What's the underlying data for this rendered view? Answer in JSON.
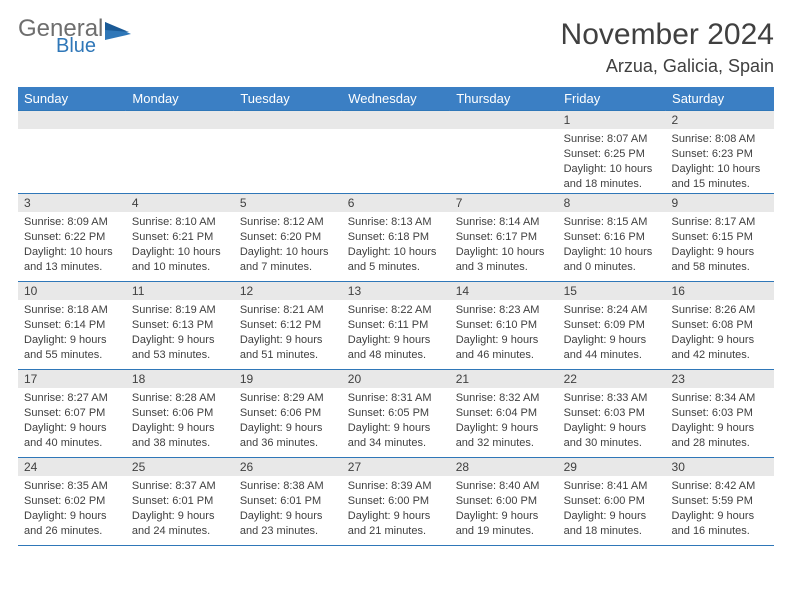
{
  "brand": {
    "line1": "General",
    "line2": "Blue",
    "line1_color": "#6e6e6e",
    "line2_color": "#2f77b8"
  },
  "title": "November 2024",
  "location": "Arzua, Galicia, Spain",
  "colors": {
    "header_bg": "#3b7fc4",
    "header_fg": "#ffffff",
    "daynum_bg": "#e8e8e8",
    "border": "#2f77b8",
    "text": "#404040",
    "page_bg": "#ffffff"
  },
  "typography": {
    "title_fontsize": 30,
    "location_fontsize": 18,
    "dayheader_fontsize": 13,
    "daynum_fontsize": 12,
    "body_fontsize": 11
  },
  "day_headers": [
    "Sunday",
    "Monday",
    "Tuesday",
    "Wednesday",
    "Thursday",
    "Friday",
    "Saturday"
  ],
  "weeks": [
    [
      null,
      null,
      null,
      null,
      null,
      {
        "n": "1",
        "sr": "Sunrise: 8:07 AM",
        "ss": "Sunset: 6:25 PM",
        "dl": "Daylight: 10 hours and 18 minutes."
      },
      {
        "n": "2",
        "sr": "Sunrise: 8:08 AM",
        "ss": "Sunset: 6:23 PM",
        "dl": "Daylight: 10 hours and 15 minutes."
      }
    ],
    [
      {
        "n": "3",
        "sr": "Sunrise: 8:09 AM",
        "ss": "Sunset: 6:22 PM",
        "dl": "Daylight: 10 hours and 13 minutes."
      },
      {
        "n": "4",
        "sr": "Sunrise: 8:10 AM",
        "ss": "Sunset: 6:21 PM",
        "dl": "Daylight: 10 hours and 10 minutes."
      },
      {
        "n": "5",
        "sr": "Sunrise: 8:12 AM",
        "ss": "Sunset: 6:20 PM",
        "dl": "Daylight: 10 hours and 7 minutes."
      },
      {
        "n": "6",
        "sr": "Sunrise: 8:13 AM",
        "ss": "Sunset: 6:18 PM",
        "dl": "Daylight: 10 hours and 5 minutes."
      },
      {
        "n": "7",
        "sr": "Sunrise: 8:14 AM",
        "ss": "Sunset: 6:17 PM",
        "dl": "Daylight: 10 hours and 3 minutes."
      },
      {
        "n": "8",
        "sr": "Sunrise: 8:15 AM",
        "ss": "Sunset: 6:16 PM",
        "dl": "Daylight: 10 hours and 0 minutes."
      },
      {
        "n": "9",
        "sr": "Sunrise: 8:17 AM",
        "ss": "Sunset: 6:15 PM",
        "dl": "Daylight: 9 hours and 58 minutes."
      }
    ],
    [
      {
        "n": "10",
        "sr": "Sunrise: 8:18 AM",
        "ss": "Sunset: 6:14 PM",
        "dl": "Daylight: 9 hours and 55 minutes."
      },
      {
        "n": "11",
        "sr": "Sunrise: 8:19 AM",
        "ss": "Sunset: 6:13 PM",
        "dl": "Daylight: 9 hours and 53 minutes."
      },
      {
        "n": "12",
        "sr": "Sunrise: 8:21 AM",
        "ss": "Sunset: 6:12 PM",
        "dl": "Daylight: 9 hours and 51 minutes."
      },
      {
        "n": "13",
        "sr": "Sunrise: 8:22 AM",
        "ss": "Sunset: 6:11 PM",
        "dl": "Daylight: 9 hours and 48 minutes."
      },
      {
        "n": "14",
        "sr": "Sunrise: 8:23 AM",
        "ss": "Sunset: 6:10 PM",
        "dl": "Daylight: 9 hours and 46 minutes."
      },
      {
        "n": "15",
        "sr": "Sunrise: 8:24 AM",
        "ss": "Sunset: 6:09 PM",
        "dl": "Daylight: 9 hours and 44 minutes."
      },
      {
        "n": "16",
        "sr": "Sunrise: 8:26 AM",
        "ss": "Sunset: 6:08 PM",
        "dl": "Daylight: 9 hours and 42 minutes."
      }
    ],
    [
      {
        "n": "17",
        "sr": "Sunrise: 8:27 AM",
        "ss": "Sunset: 6:07 PM",
        "dl": "Daylight: 9 hours and 40 minutes."
      },
      {
        "n": "18",
        "sr": "Sunrise: 8:28 AM",
        "ss": "Sunset: 6:06 PM",
        "dl": "Daylight: 9 hours and 38 minutes."
      },
      {
        "n": "19",
        "sr": "Sunrise: 8:29 AM",
        "ss": "Sunset: 6:06 PM",
        "dl": "Daylight: 9 hours and 36 minutes."
      },
      {
        "n": "20",
        "sr": "Sunrise: 8:31 AM",
        "ss": "Sunset: 6:05 PM",
        "dl": "Daylight: 9 hours and 34 minutes."
      },
      {
        "n": "21",
        "sr": "Sunrise: 8:32 AM",
        "ss": "Sunset: 6:04 PM",
        "dl": "Daylight: 9 hours and 32 minutes."
      },
      {
        "n": "22",
        "sr": "Sunrise: 8:33 AM",
        "ss": "Sunset: 6:03 PM",
        "dl": "Daylight: 9 hours and 30 minutes."
      },
      {
        "n": "23",
        "sr": "Sunrise: 8:34 AM",
        "ss": "Sunset: 6:03 PM",
        "dl": "Daylight: 9 hours and 28 minutes."
      }
    ],
    [
      {
        "n": "24",
        "sr": "Sunrise: 8:35 AM",
        "ss": "Sunset: 6:02 PM",
        "dl": "Daylight: 9 hours and 26 minutes."
      },
      {
        "n": "25",
        "sr": "Sunrise: 8:37 AM",
        "ss": "Sunset: 6:01 PM",
        "dl": "Daylight: 9 hours and 24 minutes."
      },
      {
        "n": "26",
        "sr": "Sunrise: 8:38 AM",
        "ss": "Sunset: 6:01 PM",
        "dl": "Daylight: 9 hours and 23 minutes."
      },
      {
        "n": "27",
        "sr": "Sunrise: 8:39 AM",
        "ss": "Sunset: 6:00 PM",
        "dl": "Daylight: 9 hours and 21 minutes."
      },
      {
        "n": "28",
        "sr": "Sunrise: 8:40 AM",
        "ss": "Sunset: 6:00 PM",
        "dl": "Daylight: 9 hours and 19 minutes."
      },
      {
        "n": "29",
        "sr": "Sunrise: 8:41 AM",
        "ss": "Sunset: 6:00 PM",
        "dl": "Daylight: 9 hours and 18 minutes."
      },
      {
        "n": "30",
        "sr": "Sunrise: 8:42 AM",
        "ss": "Sunset: 5:59 PM",
        "dl": "Daylight: 9 hours and 16 minutes."
      }
    ]
  ]
}
